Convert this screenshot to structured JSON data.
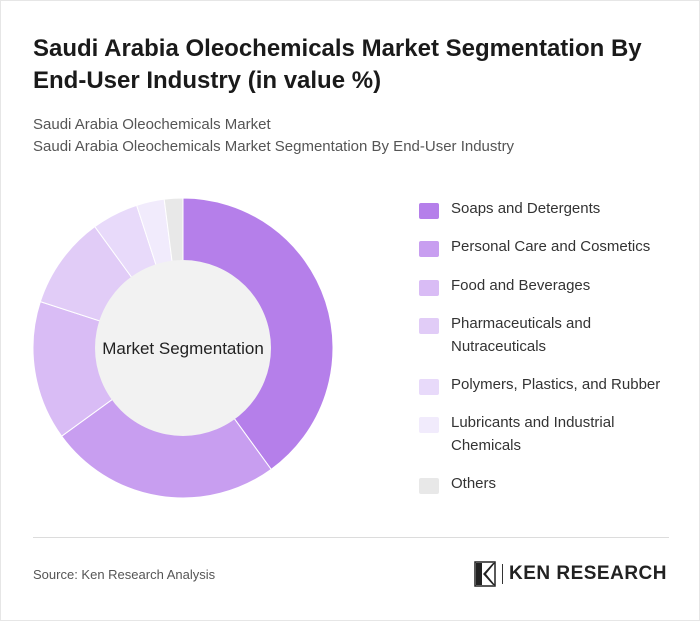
{
  "header": {
    "title": "Saudi Arabia Oleochemicals Market Segmentation By End-User Industry (in value %)",
    "subtitle_line1": "Saudi Arabia Oleochemicals Market",
    "subtitle_line2": "Saudi Arabia Oleochemicals Market Segmentation By End-User Industry"
  },
  "chart_data": {
    "type": "pie",
    "variant": "donut",
    "center_label": "Market Segmentation",
    "categories": [
      "Soaps and Detergents",
      "Personal Care and Cosmetics",
      "Food and Beverages",
      "Pharmaceuticals and Nutraceuticals",
      "Polymers, Plastics, and Rubber",
      "Lubricants and Industrial Chemicals",
      "Others"
    ],
    "values": [
      40,
      25,
      15,
      10,
      5,
      3,
      2
    ],
    "colors": [
      "#b57fea",
      "#c89ef0",
      "#d9bcf5",
      "#e1ccf7",
      "#e8dafa",
      "#f1ebfc",
      "#e8e8e8"
    ],
    "legend_position": "right"
  },
  "footer": {
    "source": "Source: Ken Research Analysis",
    "brand": "KEN RESEARCH"
  }
}
